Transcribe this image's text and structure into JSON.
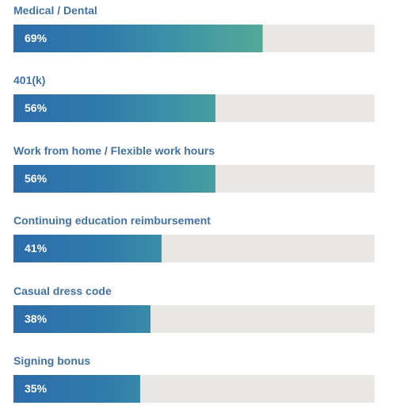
{
  "chart_data": {
    "type": "bar",
    "orientation": "horizontal",
    "categories": [
      "Medical / Dental",
      "401(k)",
      "Work from home / Flexible work hours",
      "Continuing education reimbursement",
      "Casual dress code",
      "Signing bonus"
    ],
    "values": [
      69,
      56,
      56,
      41,
      38,
      35
    ],
    "value_labels": [
      "69%",
      "56%",
      "56%",
      "41%",
      "38%",
      "35%"
    ],
    "xlim": [
      0,
      100
    ],
    "grid": false,
    "colors": {
      "label": "#4272a3",
      "track": "#e9e7e3",
      "bar_start": "#2e6dab",
      "bar_end": "#53aa98",
      "value_text": "#ffffff"
    }
  }
}
